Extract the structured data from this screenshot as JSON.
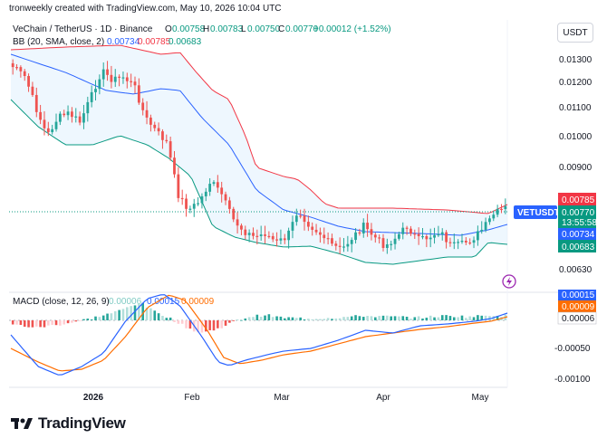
{
  "header": {
    "attribution": "tronweekly created with TradingView.com, May 10, 2026 10:04 UTC",
    "symbol_line": "VeChain / TetherUS · 1D · Binance",
    "ohlc": {
      "o_label": "O",
      "o": "0.00758",
      "h_label": "H",
      "h": "0.00783",
      "l_label": "L",
      "l": "0.00750",
      "c_label": "C",
      "c": "0.00770",
      "change": "+0.00012 (+1.52%)"
    },
    "bb_label": "BB (20, SMA, close, 2)",
    "bb_values": [
      "0.00734",
      "0.00785",
      "0.00683"
    ],
    "macd_label": "MACD (close, 12, 26, 9)",
    "macd_values": [
      "0.00006",
      "0.00015",
      "0.00009"
    ]
  },
  "currency_button": "USDT",
  "price_badges": {
    "upper": "0.00785",
    "ticker": "VETUSDT",
    "last": "0.00770",
    "countdown": "13:55:58",
    "basis": "0.00734",
    "lower": "0.00683"
  },
  "macd_badges": [
    "0.00015",
    "0.00009",
    "0.00006"
  ],
  "footer": {
    "brand": "TradingView"
  },
  "colors": {
    "up": "#26a69a",
    "down": "#ef5350",
    "bb_upper": "#f23645",
    "bb_basis": "#2962ff",
    "bb_lower": "#089981",
    "bb_fill": "#e3f2fd",
    "macd": "#2962ff",
    "signal": "#ff6d00",
    "ticker_bg": "#2962ff",
    "upper_bg": "#f23645",
    "lower_bg": "#089981",
    "last_bg": "#089981"
  },
  "chart_data": [
    {
      "type": "candlestick",
      "title": "VeChain / TetherUS · 1D · Binance",
      "y_ticks": [
        "0.01300",
        "0.01200",
        "0.01100",
        "0.01000",
        "0.00900",
        "0.00630"
      ],
      "x_ticks": [
        "2026",
        "Feb",
        "Mar",
        "Apr",
        "May"
      ],
      "last_close": 0.0077,
      "bb_upper_last": 0.00785,
      "bb_basis_last": 0.00734,
      "bb_lower_last": 0.00683
    },
    {
      "type": "line",
      "title": "MACD (close, 12, 26, 9)",
      "y_ticks": [
        "-0.00050",
        "-0.00100"
      ],
      "series": [
        {
          "name": "MACD",
          "last": 0.00015
        },
        {
          "name": "Signal",
          "last": 9e-05
        },
        {
          "name": "Histogram",
          "last": 6e-05
        }
      ]
    }
  ]
}
